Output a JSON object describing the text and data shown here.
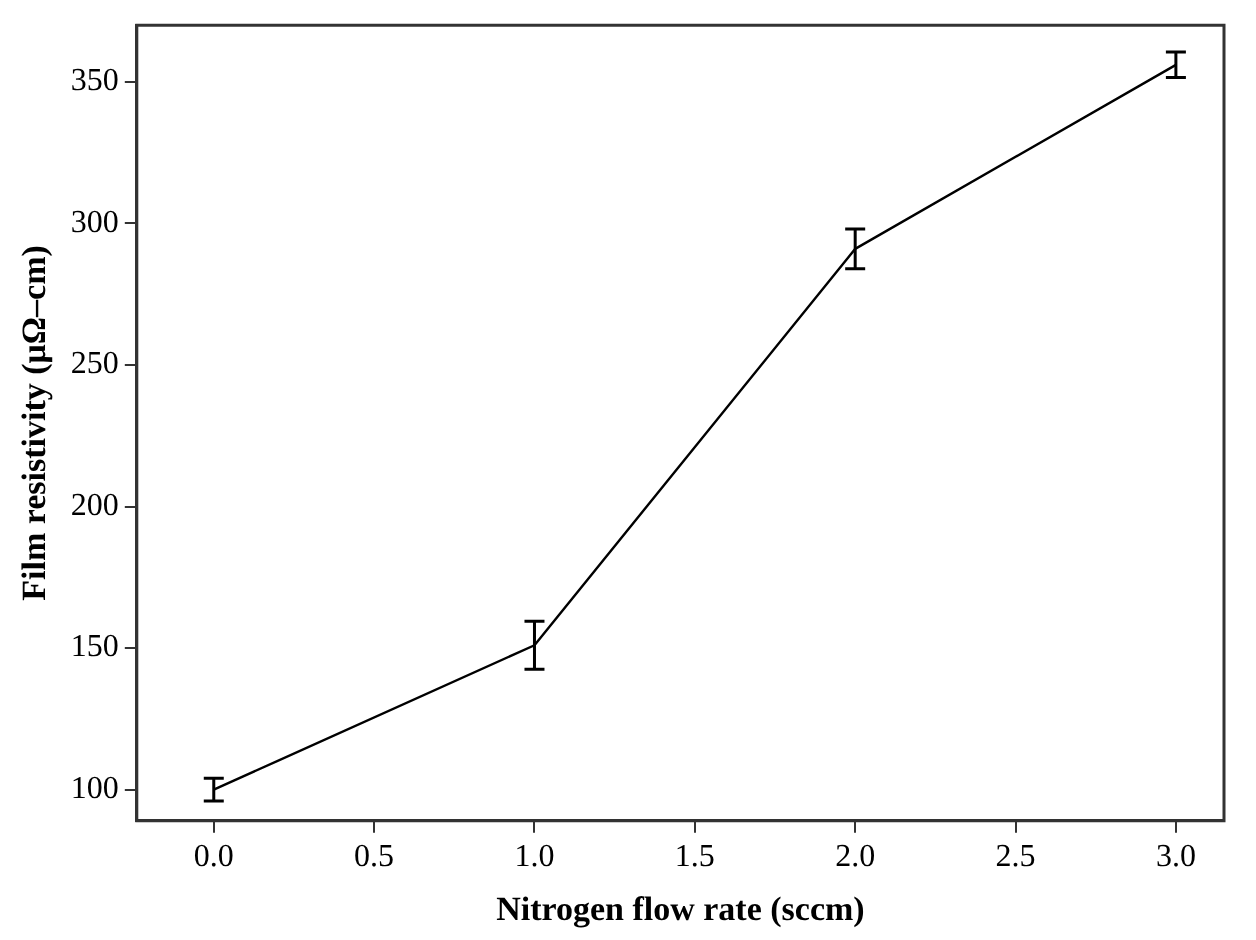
{
  "chart_data": {
    "type": "line",
    "xlabel": "Nitrogen flow rate (sccm)",
    "ylabel": "Film resistivity (μΩ–cm)",
    "x": [
      0,
      1,
      2,
      3
    ],
    "series": [
      {
        "color": "#000000",
        "values": [
          100,
          151,
          291,
          356
        ],
        "errors": [
          4,
          8.5,
          7,
          4.5
        ]
      }
    ],
    "xlim": [
      -0.24,
      3.15
    ],
    "ylim": [
      89,
      370
    ],
    "xticks": [
      {
        "value": 0,
        "label": "0.0"
      },
      {
        "value": 0.5,
        "label": "0.5"
      },
      {
        "value": 1,
        "label": "1.0"
      },
      {
        "value": 1.5,
        "label": "1.5"
      },
      {
        "value": 2,
        "label": "2.0"
      },
      {
        "value": 2.5,
        "label": "2.5"
      },
      {
        "value": 3,
        "label": "3.0"
      }
    ],
    "yticks": [
      100,
      150,
      200,
      250,
      300,
      350
    ],
    "grid": false,
    "legend": false,
    "line_style": "solid"
  }
}
